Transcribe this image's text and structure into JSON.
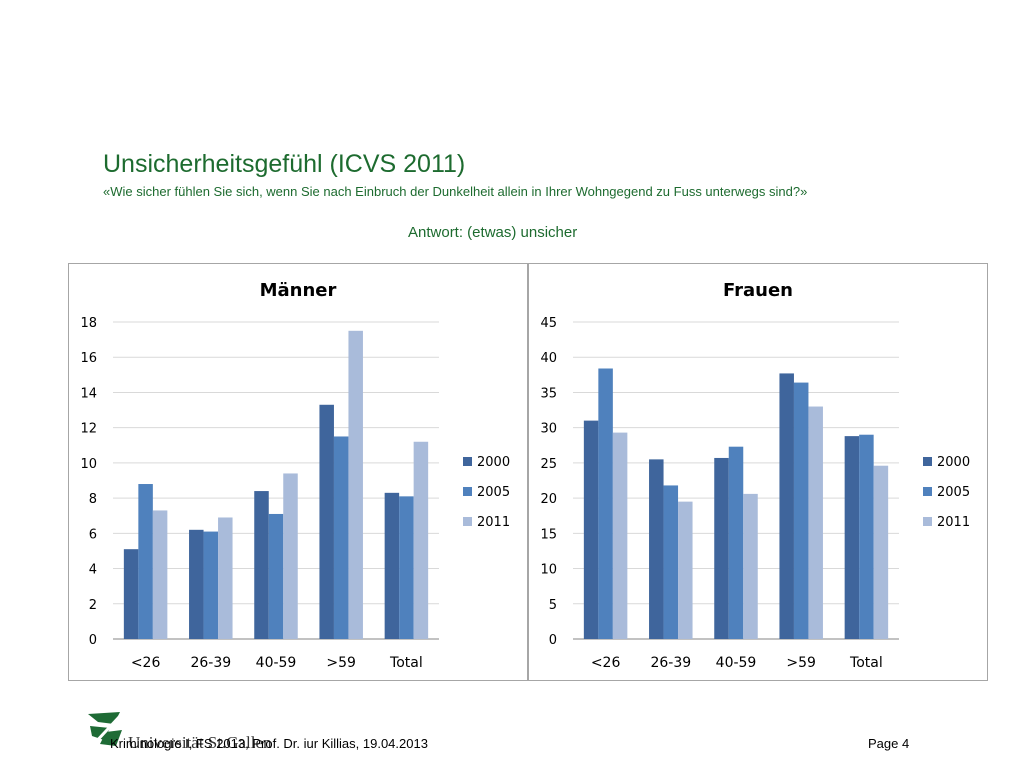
{
  "header": {
    "title": "Unsicherheitsgefühl (ICVS 2011)",
    "subtitle": "«Wie sicher fühlen Sie sich, wenn Sie nach Einbruch der Dunkelheit allein in Ihrer Wohngegend zu Fuss unterwegs sind?»",
    "answer": "Antwort: (etwas) unsicher"
  },
  "footer": {
    "brand": "Universität St.Gallen",
    "text": "Kriminologie I, FS 2013, Prof. Dr. iur Killias, 19.04.2013",
    "page": "Page 4"
  },
  "colors": {
    "title_green": "#1d6b2f",
    "series_2000": "#3f659c",
    "series_2005": "#4f81bd",
    "series_2011": "#a9bbda",
    "logo_green": "#1e6b35"
  },
  "chart_data": [
    {
      "type": "bar",
      "title": "Männer",
      "categories": [
        "<26",
        "26-39",
        "40-59",
        ">59",
        "Total"
      ],
      "series": [
        {
          "name": "2000",
          "values": [
            5.1,
            6.2,
            8.4,
            13.3,
            8.3
          ]
        },
        {
          "name": "2005",
          "values": [
            8.8,
            6.1,
            7.1,
            11.5,
            8.1
          ]
        },
        {
          "name": "2011",
          "values": [
            7.3,
            6.9,
            9.4,
            17.5,
            11.2
          ]
        }
      ],
      "ylim": [
        0,
        18
      ],
      "yticks": [
        0,
        2,
        4,
        6,
        8,
        10,
        12,
        14,
        16,
        18
      ],
      "grid": true,
      "legend": "right"
    },
    {
      "type": "bar",
      "title": "Frauen",
      "categories": [
        "<26",
        "26-39",
        "40-59",
        ">59",
        "Total"
      ],
      "series": [
        {
          "name": "2000",
          "values": [
            31.0,
            25.5,
            25.7,
            37.7,
            28.8
          ]
        },
        {
          "name": "2005",
          "values": [
            38.4,
            21.8,
            27.3,
            36.4,
            29.0
          ]
        },
        {
          "name": "2011",
          "values": [
            29.3,
            19.5,
            20.6,
            33.0,
            24.6
          ]
        }
      ],
      "ylim": [
        0,
        45
      ],
      "yticks": [
        0,
        5,
        10,
        15,
        20,
        25,
        30,
        35,
        40,
        45
      ],
      "grid": true,
      "legend": "right"
    }
  ]
}
